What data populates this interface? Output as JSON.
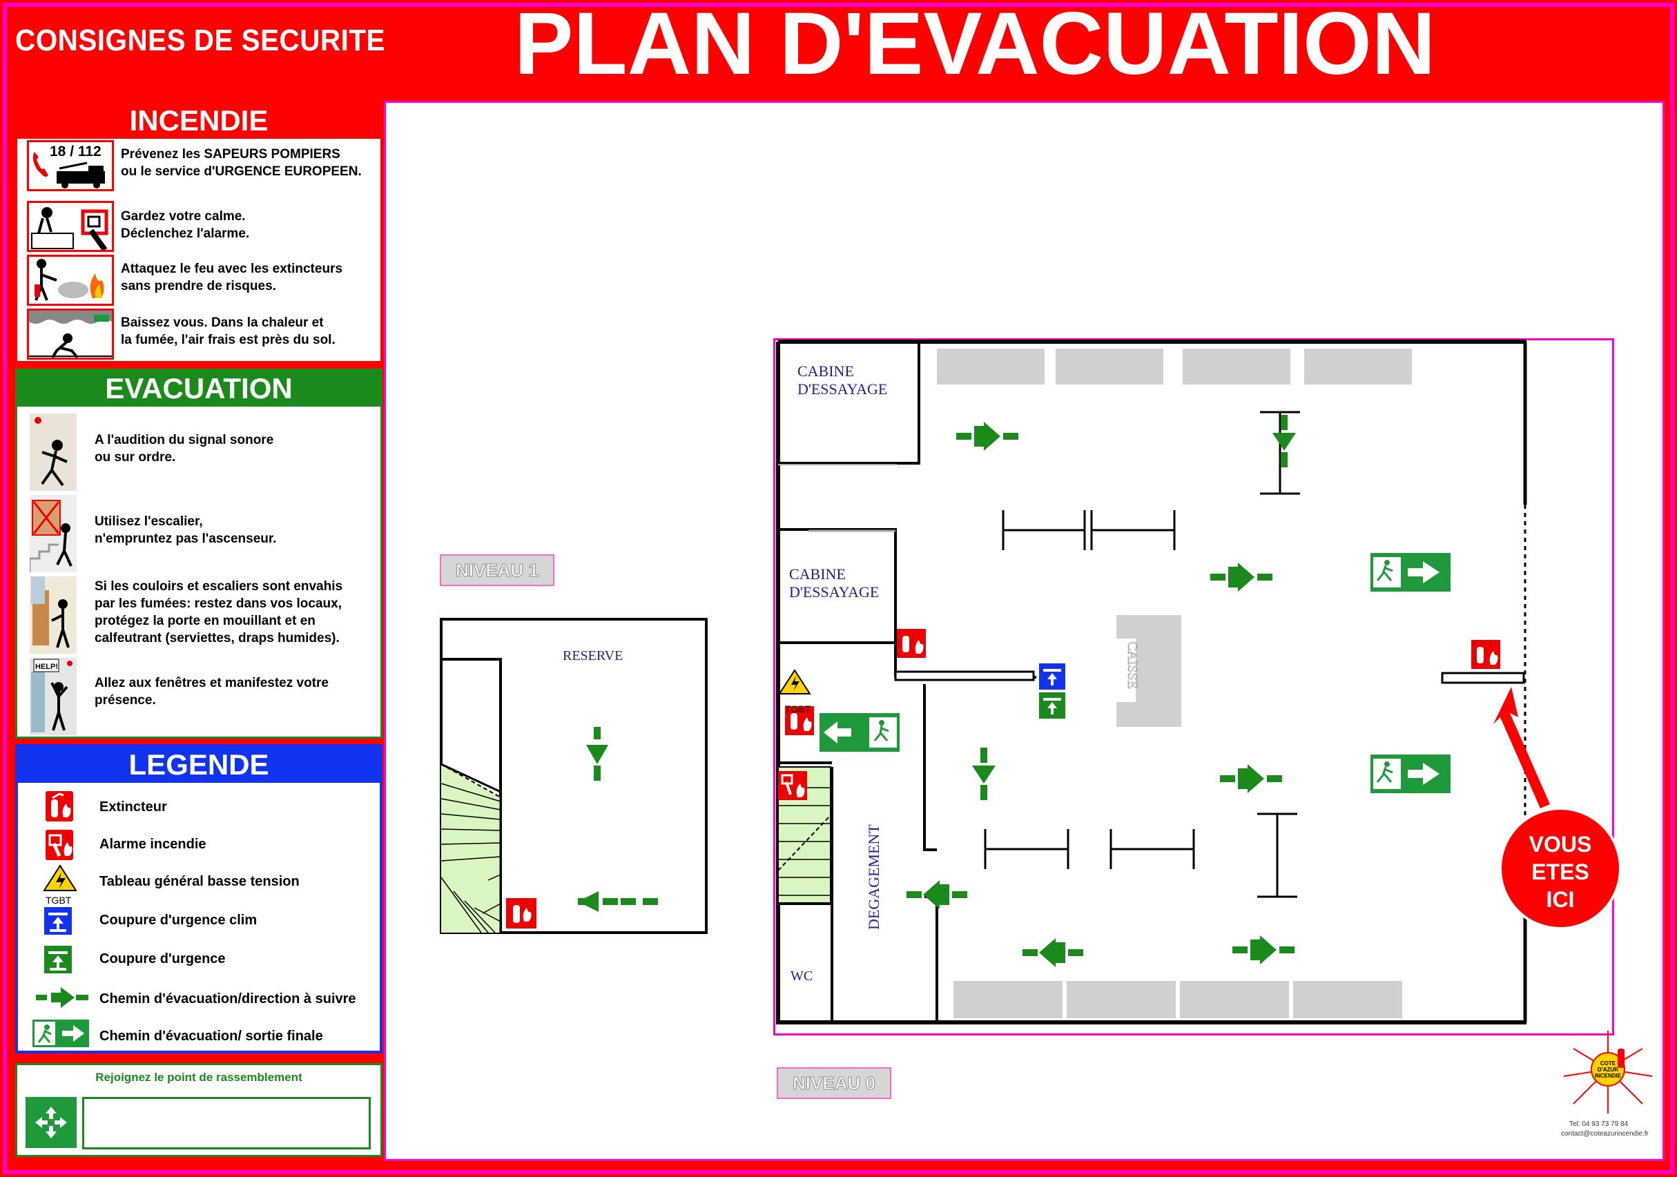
{
  "header": {
    "left_title": "CONSIGNES DE SECURITE",
    "main_title": "PLAN D'EVACUATION"
  },
  "incendie": {
    "title": "INCENDIE",
    "phone": "18 / 112",
    "items": [
      "Prévenez les SAPEURS POMPIERS\nou le service d'URGENCE EUROPEEN.",
      "Gardez votre calme.\nDéclenchez l'alarme.",
      "Attaquez le feu avec les extincteurs\nsans prendre de risques.",
      "Baissez vous. Dans la chaleur et\nla fumée, l'air frais est près du sol."
    ]
  },
  "evacuation": {
    "title": "EVACUATION",
    "items": [
      "A l'audition du signal sonore\nou sur ordre.",
      "Utilisez l'escalier,\nn'empruntez pas l'ascenseur.",
      "Si les couloirs et escaliers sont envahis\npar les fumées: restez dans vos locaux,\nprotégez la porte en mouillant et en\ncalfeutrant (serviettes, draps humides).",
      "Allez aux fenêtres et manifestez votre\nprésence."
    ]
  },
  "legende": {
    "title": "LEGENDE",
    "tgbt": "TGBT",
    "items": [
      "Extincteur",
      "Alarme incendie",
      "Tableau général basse tension",
      "Coupure d'urgence clim",
      "Coupure d'urgence",
      "Chemin d'évacuation/direction à suivre",
      "Chemin d'évacuation/ sortie finale"
    ]
  },
  "rassemblement": {
    "label": "Rejoignez le point de rassemblement"
  },
  "map": {
    "niveau1": "NIVEAU 1",
    "niveau0": "NIVEAU 0",
    "reserve": "RESERVE",
    "cabine1": "CABINE\nD'ESSAYAGE",
    "cabine2": "CABINE\nD'ESSAYAGE",
    "caisse": "CAISSE",
    "degagement": "DEGAGEMENT",
    "wc": "WC",
    "tgbt": "TGBT",
    "vous_etes_ici": "VOUS\nETES\nICI"
  },
  "logo": {
    "name": "COTE D'AZUR INCENDIE",
    "phone": "Tel: 04 93 73 79 84",
    "email": "contact@coteazurincendie.fr"
  },
  "colors": {
    "red": "#ff0000",
    "green": "#1a8a1a",
    "blue": "#1133ee",
    "magenta": "#ff00cc",
    "sign_green": "#1f9a3a"
  }
}
